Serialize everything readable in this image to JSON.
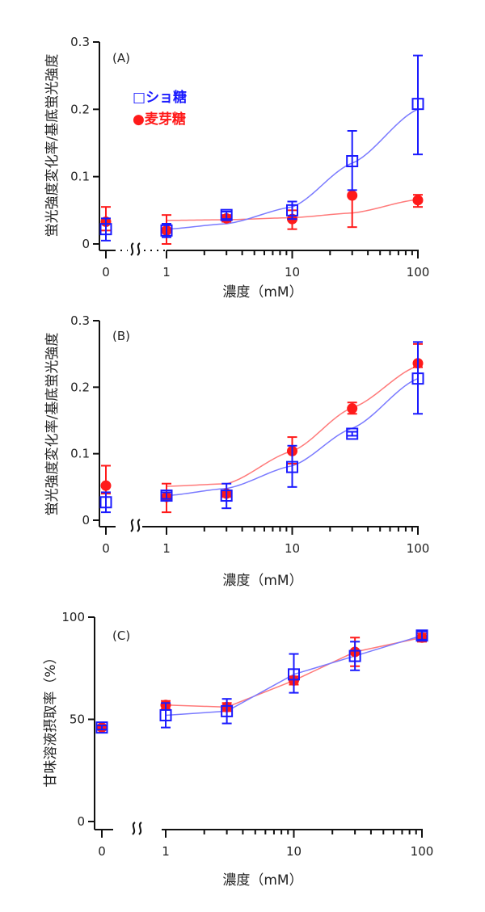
{
  "legend": {
    "sucrose": {
      "symbol": "□",
      "label": "ショ糖",
      "color": "#1a1aff"
    },
    "maltose": {
      "symbol": "●",
      "label": "麦芽糖",
      "color": "#ff1a1a"
    }
  },
  "chart_data": [
    {
      "type": "scatter",
      "panel_label": "(A)",
      "title": "",
      "xlabel": "濃度（mM）",
      "ylabel": "蛍光強度変化率/基底蛍光強度",
      "xscale": "log with broken axis (0 shown separately)",
      "x_ticks": [
        "0",
        "1",
        "10",
        "100"
      ],
      "y_ticks": [
        "0",
        "0.1",
        "0.2",
        "0.3"
      ],
      "ylim": [
        0,
        0.3
      ],
      "x": [
        0,
        1,
        3,
        10,
        30,
        100
      ],
      "fit_line": "sigmoid",
      "series": [
        {
          "name": "ショ糖",
          "marker": "open-square",
          "color": "#1a1aff",
          "values": [
            0.022,
            0.02,
            0.043,
            0.05,
            0.123,
            0.208
          ],
          "err_low": [
            0.005,
            0.01,
            0.037,
            0.037,
            0.08,
            0.133
          ],
          "err_high": [
            0.038,
            0.03,
            0.048,
            0.063,
            0.168,
            0.28
          ],
          "fit": [
            null,
            0.022,
            0.03,
            0.055,
            0.12,
            0.2
          ]
        },
        {
          "name": "麦芽糖",
          "marker": "filled-circle",
          "color": "#ff1a1a",
          "values": [
            0.033,
            0.02,
            0.038,
            0.037,
            0.072,
            0.065
          ],
          "err_low": [
            0.02,
            0.0,
            0.033,
            0.022,
            0.025,
            0.055
          ],
          "err_high": [
            0.055,
            0.043,
            0.043,
            0.05,
            0.072,
            0.073
          ],
          "fit": [
            null,
            0.035,
            0.036,
            0.039,
            0.046,
            0.066
          ]
        }
      ],
      "legend": "top-left"
    },
    {
      "type": "scatter",
      "panel_label": "(B)",
      "title": "",
      "xlabel": "濃度（mM）",
      "ylabel": "蛍光強度変化率/基底蛍光強度",
      "xscale": "log with broken axis (0 shown separately)",
      "x_ticks": [
        "0",
        "1",
        "10",
        "100"
      ],
      "y_ticks": [
        "0",
        "0.1",
        "0.2",
        "0.3"
      ],
      "ylim": [
        0,
        0.3
      ],
      "x": [
        0,
        1,
        3,
        10,
        30,
        100
      ],
      "fit_line": "sigmoid",
      "series": [
        {
          "name": "ショ糖",
          "marker": "open-square",
          "color": "#1a1aff",
          "values": [
            0.027,
            0.037,
            0.037,
            0.08,
            0.13,
            0.213
          ],
          "err_low": [
            0.012,
            0.032,
            0.018,
            0.05,
            0.127,
            0.16
          ],
          "err_high": [
            0.042,
            0.042,
            0.055,
            0.112,
            0.133,
            0.268
          ]
        },
        {
          "name": "麦芽糖",
          "marker": "filled-circle",
          "color": "#ff1a1a",
          "values": [
            0.052,
            0.035,
            0.04,
            0.104,
            0.168,
            0.236
          ],
          "err_low": [
            0.04,
            0.012,
            0.035,
            0.085,
            0.16,
            0.23
          ],
          "err_high": [
            0.082,
            0.055,
            0.045,
            0.125,
            0.177,
            0.265
          ]
        }
      ],
      "legend": "none"
    },
    {
      "type": "line",
      "panel_label": "(C)",
      "title": "",
      "xlabel": "濃度（mM）",
      "ylabel": "甘味溶液摂取率（%）",
      "xscale": "log with broken axis (0 shown separately)",
      "x_ticks": [
        "0",
        "1",
        "10",
        "100"
      ],
      "y_ticks": [
        "0",
        "50",
        "100"
      ],
      "ylim": [
        0,
        100
      ],
      "x": [
        0,
        1,
        3,
        10,
        30,
        100
      ],
      "series": [
        {
          "name": "ショ糖",
          "marker": "open-square",
          "color": "#1a1aff",
          "values": [
            46,
            52,
            54,
            72,
            81,
            91
          ],
          "err_low": [
            45,
            46,
            48,
            63,
            74,
            89
          ],
          "err_high": [
            47,
            58,
            60,
            82,
            88,
            93
          ]
        },
        {
          "name": "麦芽糖",
          "marker": "filled-circle",
          "color": "#ff1a1a",
          "values": [
            46,
            57,
            56,
            69,
            83,
            90
          ],
          "err_low": [
            45,
            55,
            54,
            67,
            76,
            88
          ],
          "err_high": [
            47,
            59,
            58,
            71,
            90,
            92
          ]
        }
      ],
      "legend": "none"
    }
  ]
}
